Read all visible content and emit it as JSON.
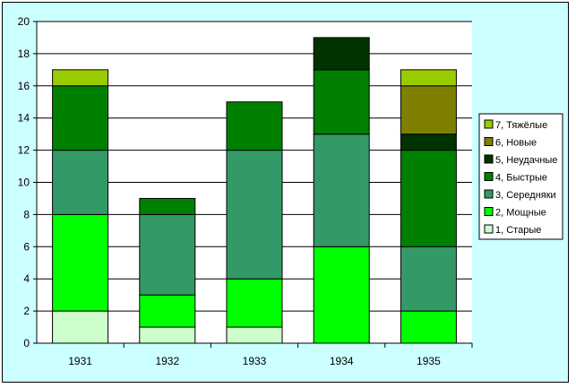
{
  "chart_data": {
    "type": "bar",
    "stacked": true,
    "categories": [
      "1931",
      "1932",
      "1933",
      "1934",
      "1935"
    ],
    "series": [
      {
        "name": "1, Старые",
        "color": "#ccffcc",
        "values": [
          2,
          1,
          1,
          0,
          0
        ]
      },
      {
        "name": "2, Мощные",
        "color": "#00ff00",
        "values": [
          6,
          2,
          3,
          6,
          2
        ]
      },
      {
        "name": "3, Середняки",
        "color": "#339966",
        "values": [
          4,
          5,
          8,
          7,
          4
        ]
      },
      {
        "name": "4, Быстрые",
        "color": "#008000",
        "values": [
          4,
          1,
          3,
          4,
          6
        ]
      },
      {
        "name": "5, Неудачные",
        "color": "#003300",
        "values": [
          0,
          0,
          0,
          2,
          1
        ]
      },
      {
        "name": "6, Новые",
        "color": "#808000",
        "values": [
          0,
          0,
          0,
          0,
          3
        ]
      },
      {
        "name": "7, Тяжёлые",
        "color": "#99cc00",
        "values": [
          1,
          0,
          0,
          0,
          1
        ]
      }
    ],
    "ylim": [
      0,
      20
    ],
    "yticks": [
      0,
      2,
      4,
      6,
      8,
      10,
      12,
      14,
      16,
      18,
      20
    ],
    "grid": true,
    "legend_position": "right"
  }
}
